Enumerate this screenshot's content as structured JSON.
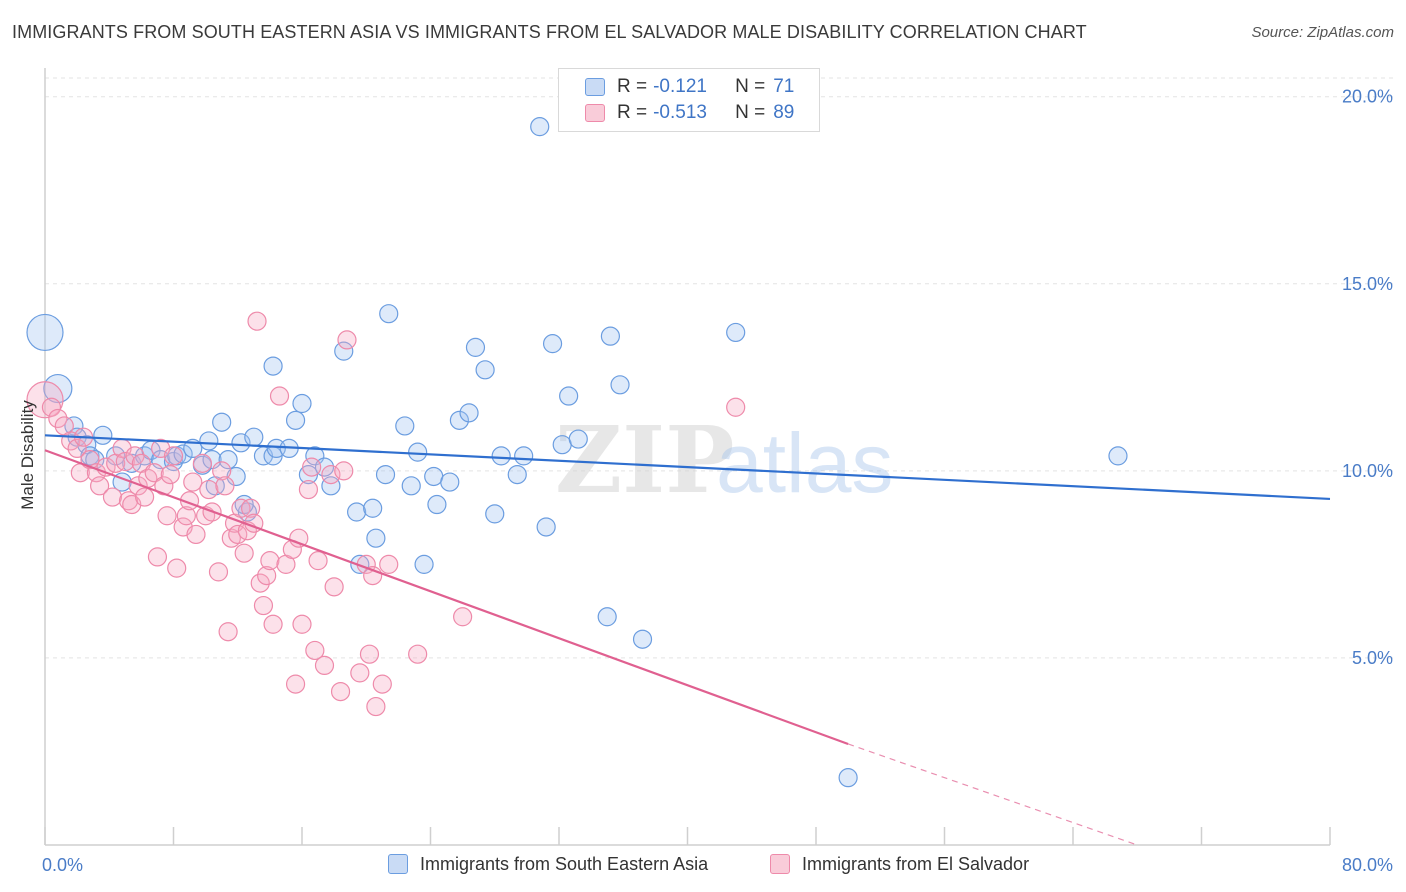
{
  "title": "IMMIGRANTS FROM SOUTH EASTERN ASIA VS IMMIGRANTS FROM EL SALVADOR MALE DISABILITY CORRELATION CHART",
  "source": "Source: ZipAtlas.com",
  "watermark": {
    "zip": "ZIP",
    "atlas": "atlas"
  },
  "legend": {
    "blue": {
      "r_label": "R =",
      "r_value": "-0.121",
      "n_label": "N =",
      "n_value": "71"
    },
    "pink": {
      "r_label": "R =",
      "r_value": "-0.513",
      "n_label": "N =",
      "n_value": "89"
    }
  },
  "colors": {
    "blue": "#6b9de0",
    "pink": "#ee8aaa",
    "blue_line": "#2f6fcf",
    "pink_line": "#e06090"
  },
  "chart_data": {
    "type": "scatter",
    "xlabel": "",
    "ylabel": "Male Disability",
    "xlim": [
      0,
      80
    ],
    "ylim": [
      0,
      20.5
    ],
    "x_tick_labels": [
      "0.0%",
      "80.0%"
    ],
    "y_ticks": [
      {
        "value": 5,
        "label": "5.0%"
      },
      {
        "value": 10,
        "label": "10.0%"
      },
      {
        "value": 15,
        "label": "15.0%"
      },
      {
        "value": 20,
        "label": "20.0%"
      }
    ],
    "grid": "horizontal dashed",
    "series": [
      {
        "name": "Immigrants from South Eastern Asia",
        "color": "#6b9de0",
        "trend": {
          "x0": 0,
          "y0": 10.95,
          "x1": 80,
          "y1": 9.25
        },
        "points": [
          [
            0,
            13.7,
            18
          ],
          [
            0.8,
            12.2,
            14
          ],
          [
            1.8,
            11.2,
            9
          ],
          [
            2,
            10.9,
            9
          ],
          [
            2.6,
            10.7,
            9
          ],
          [
            2.8,
            10.4,
            9
          ],
          [
            3.6,
            10.95,
            9
          ],
          [
            3.1,
            10.3,
            9
          ],
          [
            4.4,
            10.4,
            9
          ],
          [
            4.8,
            9.7,
            9
          ],
          [
            5.4,
            10.2,
            9
          ],
          [
            6.2,
            10.4,
            9
          ],
          [
            6.6,
            10.55,
            9
          ],
          [
            7.2,
            10.3,
            9
          ],
          [
            8,
            10.25,
            9
          ],
          [
            8.2,
            10.4,
            9
          ],
          [
            8.6,
            10.45,
            9
          ],
          [
            9.2,
            10.6,
            9
          ],
          [
            9.8,
            10.15,
            9
          ],
          [
            10.2,
            10.8,
            9
          ],
          [
            10.6,
            9.6,
            9
          ],
          [
            10.4,
            10.3,
            9
          ],
          [
            11,
            11.3,
            9
          ],
          [
            11.4,
            10.3,
            9
          ],
          [
            11.9,
            9.85,
            9
          ],
          [
            12.2,
            10.75,
            9
          ],
          [
            12.6,
            8.9,
            9
          ],
          [
            12.4,
            9.1,
            9
          ],
          [
            13,
            10.9,
            9
          ],
          [
            13.6,
            10.4,
            9
          ],
          [
            14.2,
            10.4,
            9
          ],
          [
            14.4,
            10.6,
            9
          ],
          [
            14.2,
            12.8,
            9
          ],
          [
            15.2,
            10.6,
            9
          ],
          [
            15.6,
            11.35,
            9
          ],
          [
            16,
            11.8,
            9
          ],
          [
            16.4,
            9.9,
            9
          ],
          [
            16.8,
            10.4,
            9
          ],
          [
            17.4,
            10.1,
            9
          ],
          [
            17.8,
            9.6,
            9
          ],
          [
            18.6,
            13.2,
            9
          ],
          [
            19.4,
            8.9,
            9
          ],
          [
            19.6,
            7.5,
            9
          ],
          [
            20.4,
            9.0,
            9
          ],
          [
            20.6,
            8.2,
            9
          ],
          [
            21.2,
            9.9,
            9
          ],
          [
            21.4,
            14.2,
            9
          ],
          [
            22.4,
            11.2,
            9
          ],
          [
            22.8,
            9.6,
            9
          ],
          [
            23.2,
            10.5,
            9
          ],
          [
            23.6,
            7.5,
            9
          ],
          [
            24.2,
            9.85,
            9
          ],
          [
            24.4,
            9.1,
            9
          ],
          [
            25.2,
            9.7,
            9
          ],
          [
            25.8,
            11.35,
            9
          ],
          [
            26.4,
            11.55,
            9
          ],
          [
            26.8,
            13.3,
            9
          ],
          [
            27.4,
            12.7,
            9
          ],
          [
            28,
            8.85,
            9
          ],
          [
            28.4,
            10.4,
            9
          ],
          [
            29.4,
            9.9,
            9
          ],
          [
            29.8,
            10.4,
            9
          ],
          [
            30.8,
            19.2,
            9
          ],
          [
            31.2,
            8.5,
            9
          ],
          [
            31.6,
            13.4,
            9
          ],
          [
            32.2,
            10.7,
            9
          ],
          [
            32.6,
            12.0,
            9
          ],
          [
            33.2,
            10.85,
            9
          ],
          [
            35,
            6.1,
            9
          ],
          [
            35.2,
            13.6,
            9
          ],
          [
            35.8,
            12.3,
            9
          ],
          [
            37.2,
            5.5,
            9
          ],
          [
            43,
            13.7,
            9
          ],
          [
            50,
            1.8,
            9
          ],
          [
            66.8,
            10.4,
            9
          ]
        ]
      },
      {
        "name": "Immigrants from El Salvador",
        "color": "#ee8aaa",
        "trend": {
          "x0": 0,
          "y0": 10.55,
          "x1": 50,
          "y1": 2.7,
          "dash_x1": 80,
          "dash_y1": -1.8
        },
        "points": [
          [
            0,
            11.9,
            18
          ],
          [
            0.4,
            11.7,
            9
          ],
          [
            0.8,
            11.4,
            9
          ],
          [
            1.2,
            11.2,
            9
          ],
          [
            1.6,
            10.8,
            9
          ],
          [
            2,
            10.6,
            9
          ],
          [
            2.4,
            10.9,
            9
          ],
          [
            2.2,
            9.95,
            9
          ],
          [
            2.8,
            10.3,
            9
          ],
          [
            3.2,
            9.95,
            9
          ],
          [
            3.4,
            9.6,
            9
          ],
          [
            3.8,
            10.1,
            9
          ],
          [
            4.2,
            9.3,
            9
          ],
          [
            4.4,
            10.2,
            9
          ],
          [
            4.8,
            10.6,
            9
          ],
          [
            5,
            10.25,
            9
          ],
          [
            5.2,
            9.2,
            9
          ],
          [
            5.4,
            9.1,
            9
          ],
          [
            5.6,
            10.4,
            9
          ],
          [
            5.8,
            9.6,
            9
          ],
          [
            6,
            10.2,
            9
          ],
          [
            6.2,
            9.3,
            9
          ],
          [
            6.4,
            9.8,
            9
          ],
          [
            6.8,
            9.95,
            9
          ],
          [
            7,
            7.7,
            9
          ],
          [
            7.2,
            10.6,
            9
          ],
          [
            7.4,
            9.6,
            9
          ],
          [
            7.6,
            8.8,
            9
          ],
          [
            7.8,
            9.9,
            9
          ],
          [
            8,
            10.4,
            9
          ],
          [
            8.2,
            7.4,
            9
          ],
          [
            8.6,
            8.5,
            9
          ],
          [
            8.8,
            8.8,
            9
          ],
          [
            9,
            9.2,
            9
          ],
          [
            9.2,
            9.7,
            9
          ],
          [
            9.4,
            8.3,
            9
          ],
          [
            9.8,
            10.2,
            9
          ],
          [
            10,
            8.8,
            9
          ],
          [
            10.2,
            9.5,
            9
          ],
          [
            10.4,
            8.9,
            9
          ],
          [
            10.8,
            7.3,
            9
          ],
          [
            11,
            10.0,
            9
          ],
          [
            11.2,
            9.6,
            9
          ],
          [
            11.4,
            5.7,
            9
          ],
          [
            11.6,
            8.2,
            9
          ],
          [
            11.8,
            8.6,
            9
          ],
          [
            12,
            8.3,
            9
          ],
          [
            12.2,
            9.0,
            9
          ],
          [
            12.4,
            7.8,
            9
          ],
          [
            12.6,
            8.4,
            9
          ],
          [
            12.8,
            9.0,
            9
          ],
          [
            13,
            8.6,
            9
          ],
          [
            13.2,
            14.0,
            9
          ],
          [
            13.4,
            7.0,
            9
          ],
          [
            13.6,
            6.4,
            9
          ],
          [
            13.8,
            7.2,
            9
          ],
          [
            14,
            7.6,
            9
          ],
          [
            14.2,
            5.9,
            9
          ],
          [
            14.6,
            12.0,
            9
          ],
          [
            15,
            7.5,
            9
          ],
          [
            15.4,
            7.9,
            9
          ],
          [
            15.6,
            4.3,
            9
          ],
          [
            15.8,
            8.2,
            9
          ],
          [
            16,
            5.9,
            9
          ],
          [
            16.4,
            9.5,
            9
          ],
          [
            16.6,
            10.1,
            9
          ],
          [
            16.8,
            5.2,
            9
          ],
          [
            17,
            7.6,
            9
          ],
          [
            17.4,
            4.8,
            9
          ],
          [
            17.8,
            9.9,
            9
          ],
          [
            18,
            6.9,
            9
          ],
          [
            18.4,
            4.1,
            9
          ],
          [
            18.6,
            10.0,
            9
          ],
          [
            18.8,
            13.5,
            9
          ],
          [
            19.6,
            4.6,
            9
          ],
          [
            20,
            7.5,
            9
          ],
          [
            20.2,
            5.1,
            9
          ],
          [
            20.4,
            7.2,
            9
          ],
          [
            20.6,
            3.7,
            9
          ],
          [
            21,
            4.3,
            9
          ],
          [
            21.4,
            7.5,
            9
          ],
          [
            23.2,
            5.1,
            9
          ],
          [
            26,
            6.1,
            9
          ],
          [
            43,
            11.7,
            9
          ]
        ]
      }
    ]
  }
}
